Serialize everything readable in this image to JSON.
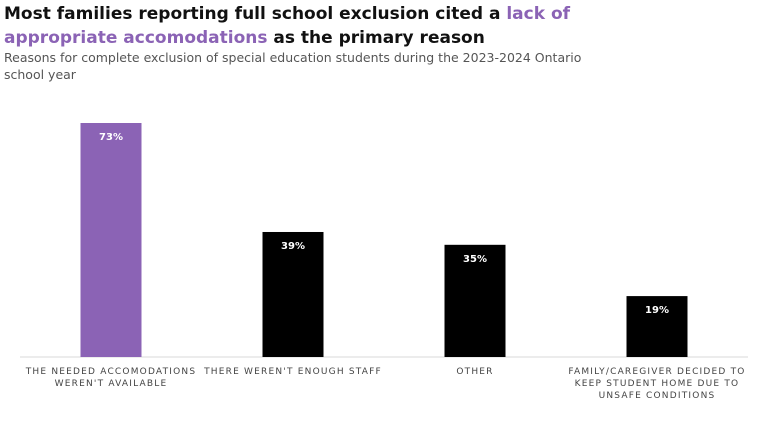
{
  "chart_data": {
    "type": "bar",
    "title_parts": [
      {
        "text": "Most families reporting full school exclusion cited a ",
        "highlight": false
      },
      {
        "text": "lack of appropriate accomodations",
        "highlight": true
      },
      {
        "text": " as the primary reason",
        "highlight": false
      }
    ],
    "subtitle": "Reasons for complete exclusion of special education students during the 2023-2024 Ontario school year",
    "categories": [
      [
        "THE NEEDED ACCOMODATIONS",
        "WEREN'T AVAILABLE"
      ],
      [
        "THERE WEREN'T ENOUGH STAFF"
      ],
      [
        "OTHER"
      ],
      [
        "FAMILY/CAREGIVER DECIDED TO",
        "KEEP STUDENT HOME DUE TO",
        "UNSAFE CONDITIONS"
      ]
    ],
    "values": [
      73,
      39,
      35,
      19
    ],
    "data_labels": [
      "73%",
      "39%",
      "35%",
      "19%"
    ],
    "highlight_index": 0,
    "ylim": [
      0,
      73
    ],
    "grid": false,
    "colors": {
      "highlight": "#8b63b5",
      "default": "#000000",
      "axis": "#d9d9d9",
      "title_highlight": "#8b63b5"
    }
  }
}
